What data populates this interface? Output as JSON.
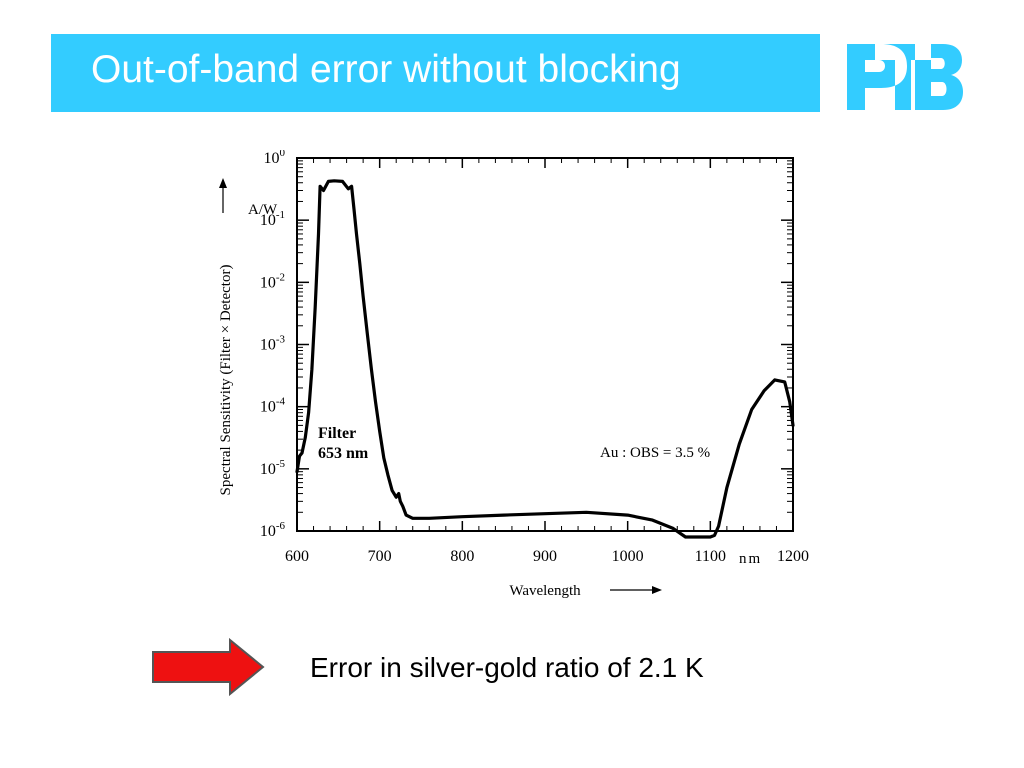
{
  "slide": {
    "title": "Out-of-band error without blocking",
    "logo_text": "PTB",
    "note": "Error in silver-gold ratio of 2.1 K",
    "accent_color": "#33ccff",
    "arrow_color": "#ee1111"
  },
  "chart_data": {
    "type": "line",
    "xlabel": "Wavelength",
    "x_unit": "nm",
    "ylabel": "Spectral Sensitivity  (Filter × Detector)",
    "y_unit": "A/W",
    "xlim": [
      600,
      1200
    ],
    "ylim": [
      1e-06,
      1
    ],
    "y_scale": "log",
    "grid": false,
    "x_ticks": [
      "600",
      "700",
      "800",
      "900",
      "1000",
      "1100",
      "1200"
    ],
    "y_ticks": [
      {
        "base": "10",
        "exp": "0"
      },
      {
        "base": "10",
        "exp": "-1"
      },
      {
        "base": "10",
        "exp": "-2"
      },
      {
        "base": "10",
        "exp": "-3"
      },
      {
        "base": "10",
        "exp": "-4"
      },
      {
        "base": "10",
        "exp": "-5"
      },
      {
        "base": "10",
        "exp": "-6"
      }
    ],
    "annotations": {
      "filter_line1": "Filter",
      "filter_line2": "653 nm",
      "ratio": "Au : OBS = 3.5 %"
    },
    "series": [
      {
        "x": [
          600,
          603,
          606,
          610,
          614,
          618,
          622,
          626,
          628,
          632,
          638,
          645,
          655,
          662,
          666,
          669,
          672,
          676,
          680,
          685,
          690,
          695,
          700,
          705,
          710,
          715,
          720,
          723,
          725,
          728,
          732,
          740,
          760,
          800,
          850,
          900,
          950,
          1000,
          1030,
          1055,
          1070,
          1085,
          1100,
          1105,
          1110,
          1120,
          1135,
          1150,
          1165,
          1178,
          1190,
          1196,
          1200
        ],
        "y": [
          9e-06,
          1.6e-05,
          1.8e-05,
          3.2e-05,
          8e-05,
          0.0004,
          0.004,
          0.06,
          0.35,
          0.3,
          0.42,
          0.43,
          0.42,
          0.32,
          0.35,
          0.15,
          0.06,
          0.02,
          0.006,
          0.0015,
          0.0004,
          0.00012,
          4e-05,
          1.5e-05,
          8e-06,
          4.5e-06,
          3.5e-06,
          4e-06,
          3e-06,
          2.5e-06,
          1.8e-06,
          1.6e-06,
          1.6e-06,
          1.7e-06,
          1.8e-06,
          1.9e-06,
          2e-06,
          1.8e-06,
          1.5e-06,
          1.1e-06,
          8e-07,
          8e-07,
          8e-07,
          8.5e-07,
          1.2e-06,
          5e-06,
          2.5e-05,
          9e-05,
          0.00018,
          0.00027,
          0.00025,
          0.00012,
          5e-05
        ]
      }
    ]
  }
}
